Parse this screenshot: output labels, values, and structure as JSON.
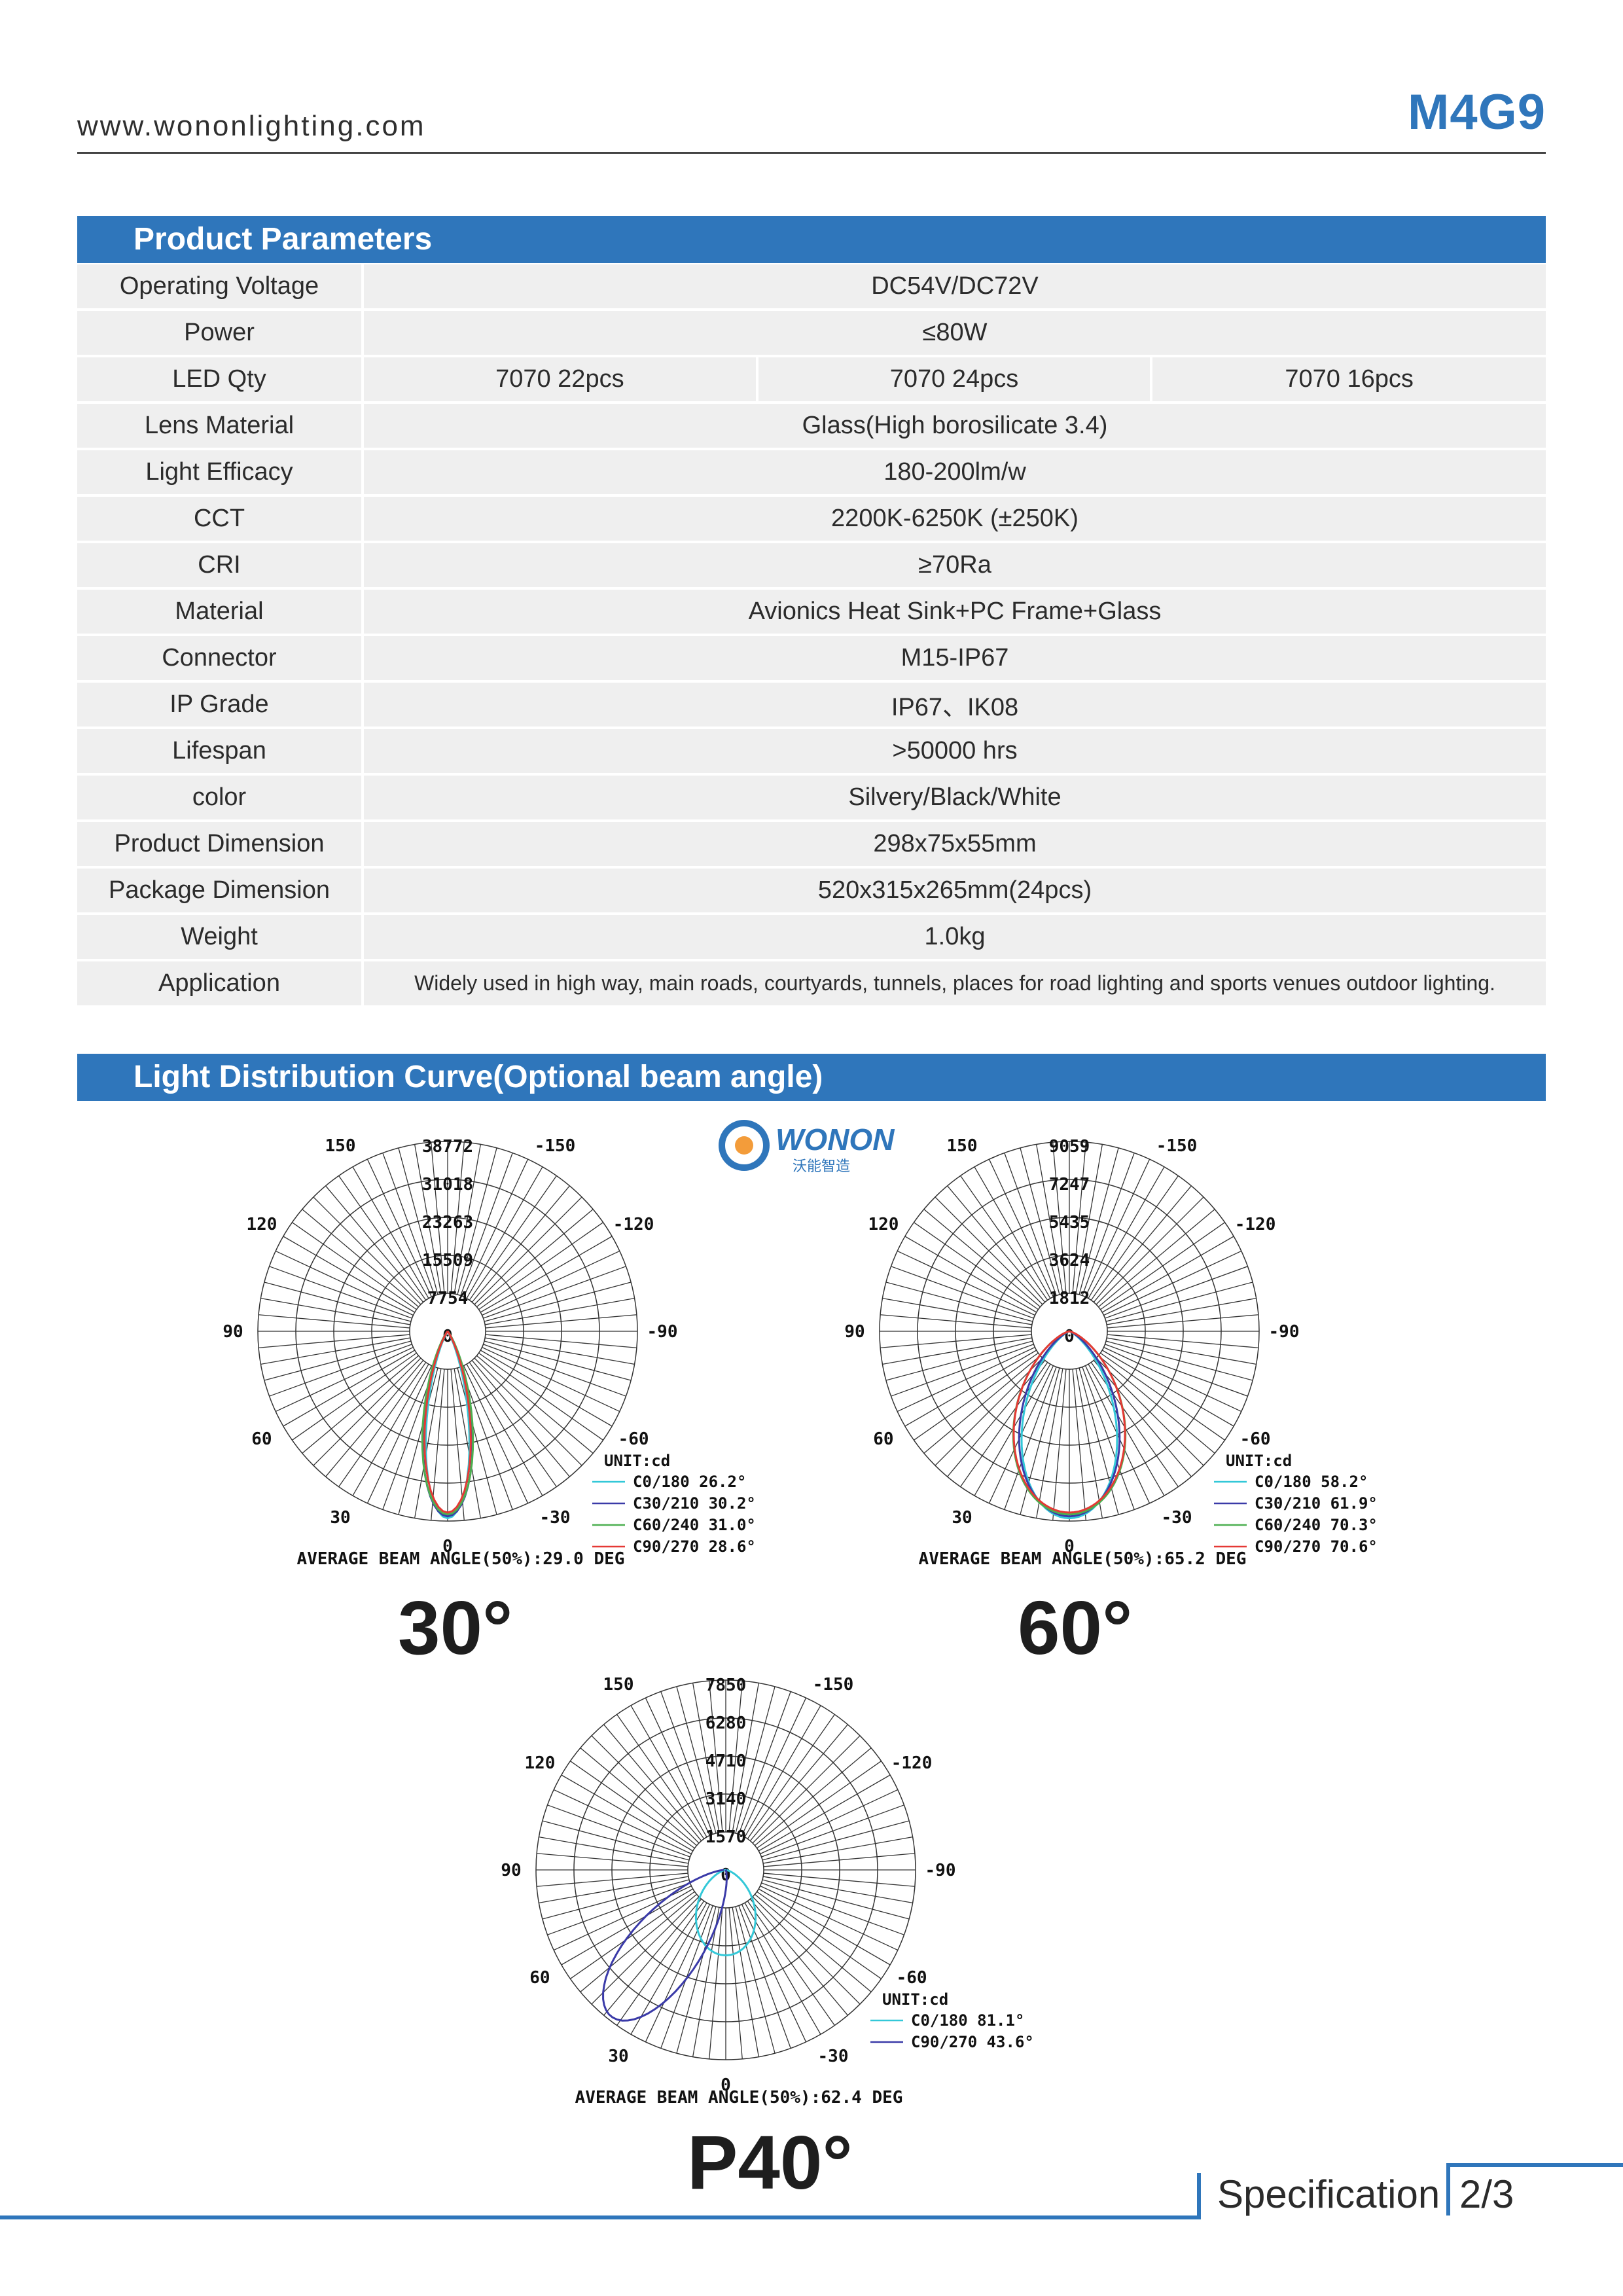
{
  "header": {
    "website": "www.wononlighting.com",
    "model": "M4G9"
  },
  "sections": {
    "params_title": "Product Parameters",
    "curve_title": "Light Distribution Curve(Optional beam angle)"
  },
  "params": [
    {
      "label": "Operating Voltage",
      "value": "DC54V/DC72V"
    },
    {
      "label": "Power",
      "value": "≤80W"
    },
    {
      "label": "LED Qty",
      "values": [
        "7070 22pcs",
        "7070 24pcs",
        "7070 16pcs"
      ]
    },
    {
      "label": "Lens Material",
      "value": "Glass(High borosilicate 3.4)"
    },
    {
      "label": "Light Efficacy",
      "value": "180-200lm/w"
    },
    {
      "label": "CCT",
      "value": "2200K-6250K (±250K)"
    },
    {
      "label": "CRI",
      "value": "≥70Ra"
    },
    {
      "label": "Material",
      "value": "Avionics Heat Sink+PC Frame+Glass"
    },
    {
      "label": "Connector",
      "value": "M15-IP67"
    },
    {
      "label": "IP Grade",
      "value": "IP67、IK08"
    },
    {
      "label": "Lifespan",
      "value": ">50000 hrs"
    },
    {
      "label": "color",
      "value": "Silvery/Black/White"
    },
    {
      "label": "Product Dimension",
      "value": "298x75x55mm"
    },
    {
      "label": "Package Dimension",
      "value": "520x315x265mm(24pcs)"
    },
    {
      "label": "Weight",
      "value": "1.0kg"
    },
    {
      "label": "Application",
      "value": "Widely used in high way, main roads, courtyards, tunnels, places for road lighting and sports venues outdoor lighting."
    }
  ],
  "logo": {
    "brand": "WONON",
    "subtitle": "沃能智造"
  },
  "chart_data": [
    {
      "type": "polar",
      "beam_label": "30°",
      "unit_label": "UNIT:cd",
      "rings": [
        "38772",
        "31018",
        "23263",
        "15509",
        "7754",
        "0"
      ],
      "angle_labels": [
        "-150",
        "150",
        "-120",
        "120",
        "-90",
        "90",
        "-60",
        "60",
        "-30",
        "30",
        "0"
      ],
      "average_text": "AVERAGE BEAM ANGLE(50%):29.0 DEG",
      "series": [
        {
          "name": "C0/180 26.2°",
          "color": "#33c8d8",
          "half_angle": 13.1
        },
        {
          "name": "C30/210 30.2°",
          "color": "#3a3aa8",
          "half_angle": 15.1
        },
        {
          "name": "C60/240 31.0°",
          "color": "#4caf50",
          "half_angle": 15.5
        },
        {
          "name": "C90/270 28.6°",
          "color": "#e53935",
          "half_angle": 14.3
        }
      ]
    },
    {
      "type": "polar",
      "beam_label": "60°",
      "unit_label": "UNIT:cd",
      "rings": [
        "9059",
        "7247",
        "5435",
        "3624",
        "1812",
        "0"
      ],
      "angle_labels": [
        "-150",
        "150",
        "-120",
        "120",
        "-90",
        "90",
        "-60",
        "60",
        "-30",
        "30",
        "0"
      ],
      "average_text": "AVERAGE BEAM ANGLE(50%):65.2 DEG",
      "series": [
        {
          "name": "C0/180 58.2°",
          "color": "#33c8d8",
          "half_angle": 29.1
        },
        {
          "name": "C30/210 61.9°",
          "color": "#3a3aa8",
          "half_angle": 31
        },
        {
          "name": "C60/240 70.3°",
          "color": "#4caf50",
          "half_angle": 35.2
        },
        {
          "name": "C90/270 70.6°",
          "color": "#e53935",
          "half_angle": 35.3
        }
      ]
    },
    {
      "type": "polar",
      "beam_label": "P40°",
      "unit_label": "UNIT:cd",
      "rings": [
        "7850",
        "6280",
        "4710",
        "3140",
        "1570",
        "0"
      ],
      "angle_labels": [
        "-150",
        "150",
        "-120",
        "120",
        "-90",
        "90",
        "-60",
        "60",
        "-30",
        "30",
        "0"
      ],
      "average_text": "AVERAGE BEAM ANGLE(50%):62.4 DEG",
      "series": [
        {
          "name": "C0/180 81.1°",
          "color": "#33c8d8",
          "half_angle": 40.5
        },
        {
          "name": "C90/270 43.6°",
          "color": "#3a3aa8",
          "half_angle": 21.8
        }
      ]
    }
  ],
  "footer": {
    "label": "Specification",
    "page": "2/3"
  }
}
